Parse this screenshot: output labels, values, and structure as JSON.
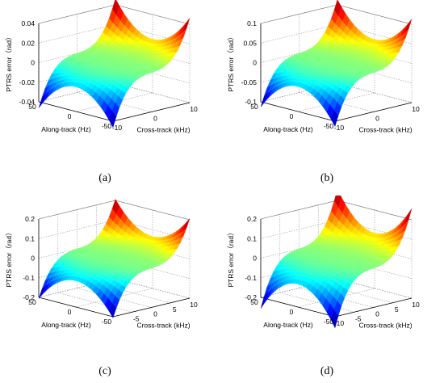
{
  "figure": {
    "captions": [
      "(a)",
      "(b)",
      "(c)",
      "(d)"
    ]
  },
  "chart_data": [
    {
      "type": "surface",
      "panel": "(a)",
      "zlabel": "PTRS error（rad）",
      "xlabel": "Cross-track (kHz)",
      "ylabel": "Along-track (Hz)",
      "xlim": [
        -10,
        10
      ],
      "ylim": [
        -50,
        50
      ],
      "zlim": [
        -0.04,
        0.04
      ],
      "xticks": [
        -10,
        0,
        10
      ],
      "yticks": [
        -50,
        0,
        50
      ],
      "zticks": [
        -0.04,
        -0.02,
        0,
        0.02,
        0.04
      ],
      "ztick_labels": [
        "-0.04",
        "-0.02",
        "0",
        "0.02",
        "0.04"
      ],
      "surface_range": [
        -0.045,
        0.045
      ],
      "grid": true,
      "colormap": "jet"
    },
    {
      "type": "surface",
      "panel": "(b)",
      "zlabel": "PTRS error（rad）",
      "xlabel": "Cross-track (kHz)",
      "ylabel": "Along-track (Hz)",
      "xlim": [
        -10,
        10
      ],
      "ylim": [
        -50,
        50
      ],
      "zlim": [
        -0.1,
        0.1
      ],
      "xticks": [
        -10,
        0,
        10
      ],
      "yticks": [
        -50,
        0,
        50
      ],
      "zticks": [
        -0.1,
        -0.05,
        0,
        0.05,
        0.1
      ],
      "ztick_labels": [
        "-0.1",
        "-0.05",
        "0",
        "0.05",
        "0.1"
      ],
      "surface_range": [
        -0.11,
        0.11
      ],
      "grid": true,
      "colormap": "jet"
    },
    {
      "type": "surface",
      "panel": "(c)",
      "zlabel": "PTRS error（rad）",
      "xlabel": "Cross-track (kHz)",
      "ylabel": "Along-track (Hz)",
      "xlim": [
        -10,
        10
      ],
      "ylim": [
        -50,
        50
      ],
      "zlim": [
        -0.2,
        0.2
      ],
      "xticks": [
        -5,
        0,
        5,
        10
      ],
      "yticks": [
        -50,
        0,
        50
      ],
      "zticks": [
        -0.2,
        -0.1,
        0,
        0.1,
        0.2
      ],
      "ztick_labels": [
        "-0.2",
        "-0.1",
        "0",
        "0.1",
        "0.2"
      ],
      "surface_range": [
        -0.2,
        0.2
      ],
      "grid": true,
      "colormap": "jet"
    },
    {
      "type": "surface",
      "panel": "(d)",
      "zlabel": "PTRS error（rad）",
      "xlabel": "Cross-track (kHz)",
      "ylabel": "Along-track (Hz)",
      "xlim": [
        -10,
        10
      ],
      "ylim": [
        -50,
        50
      ],
      "zlim": [
        -0.2,
        0.2
      ],
      "xticks": [
        -10,
        -5,
        0,
        5,
        10
      ],
      "yticks": [
        -50,
        0,
        50
      ],
      "zticks": [
        -0.2,
        -0.1,
        0,
        0.1,
        0.2
      ],
      "ztick_labels": [
        "-0.2",
        "-0.1",
        "0",
        "0.1",
        "0.2"
      ],
      "surface_range": [
        -0.25,
        0.25
      ],
      "grid": true,
      "colormap": "jet"
    }
  ]
}
